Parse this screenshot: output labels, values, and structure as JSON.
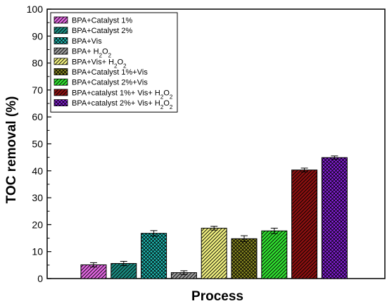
{
  "chart_data": {
    "type": "bar",
    "xlabel": "Process",
    "ylabel": "TOC removal (%)",
    "ylim": [
      0,
      100
    ],
    "yticks": [
      0,
      10,
      20,
      30,
      40,
      50,
      60,
      70,
      80,
      90,
      100
    ],
    "grid": false,
    "legend_position": "top-left",
    "series": [
      {
        "name": "BPA+Catalyst 1%",
        "name_main": "BPA+Catalyst 1%",
        "name_sub": "",
        "name_tail": "",
        "value": 5.1,
        "error": 0.8,
        "color": "#e066e0",
        "pattern": "diagonal"
      },
      {
        "name": "BPA+Catalyst 2%",
        "name_main": "BPA+Catalyst 2%",
        "name_sub": "",
        "name_tail": "",
        "value": 5.6,
        "error": 0.8,
        "color": "#1a8a80",
        "pattern": "diagonal"
      },
      {
        "name": "BPA+Vis",
        "name_main": "BPA+Vis",
        "name_sub": "",
        "name_tail": "",
        "value": 16.8,
        "error": 1.0,
        "color": "#20c0b8",
        "pattern": "crosshatch"
      },
      {
        "name": "BPA+ H2O2",
        "name_main": "BPA+ H",
        "name_sub": "2",
        "name_tail": "O",
        "name_sub2": "2",
        "value": 2.2,
        "error": 0.7,
        "color": "#9a9a9a",
        "pattern": "diagonal"
      },
      {
        "name": "BPA+Vis+ H2O2",
        "name_main": "BPA+Vis+ H",
        "name_sub": "2",
        "name_tail": "O",
        "name_sub2": "2",
        "value": 18.7,
        "error": 0.7,
        "color": "#f0f080",
        "pattern": "diagonal"
      },
      {
        "name": "BPA+Catalyst 1%+Vis",
        "name_main": "BPA+Catalyst 1%+Vis",
        "name_sub": "",
        "name_tail": "",
        "value": 14.8,
        "error": 1.1,
        "color": "#8a8a20",
        "pattern": "crosshatch"
      },
      {
        "name": "BPA+Catalyst 2%+Vis",
        "name_main": "BPA+Catalyst 2%+Vis",
        "name_sub": "",
        "name_tail": "",
        "value": 17.7,
        "error": 1.0,
        "color": "#30e030",
        "pattern": "diagonal"
      },
      {
        "name": "BPA+catalyst 1%+ Vis+ H2O2",
        "name_main": "BPA+catalyst 1%+ Vis+ H",
        "name_sub": "2",
        "name_tail": "O",
        "name_sub2": "2",
        "value": 40.3,
        "error": 0.7,
        "color": "#8a1010",
        "pattern": "diagonal"
      },
      {
        "name": "BPA+catalyst 2%+ Vis+ H2O2",
        "name_main": "BPA+catalyst 2%+ Vis+ H",
        "name_sub": "2",
        "name_tail": "O",
        "name_sub2": "2",
        "value": 44.9,
        "error": 0.6,
        "color": "#8a20e0",
        "pattern": "crosshatch"
      }
    ]
  }
}
